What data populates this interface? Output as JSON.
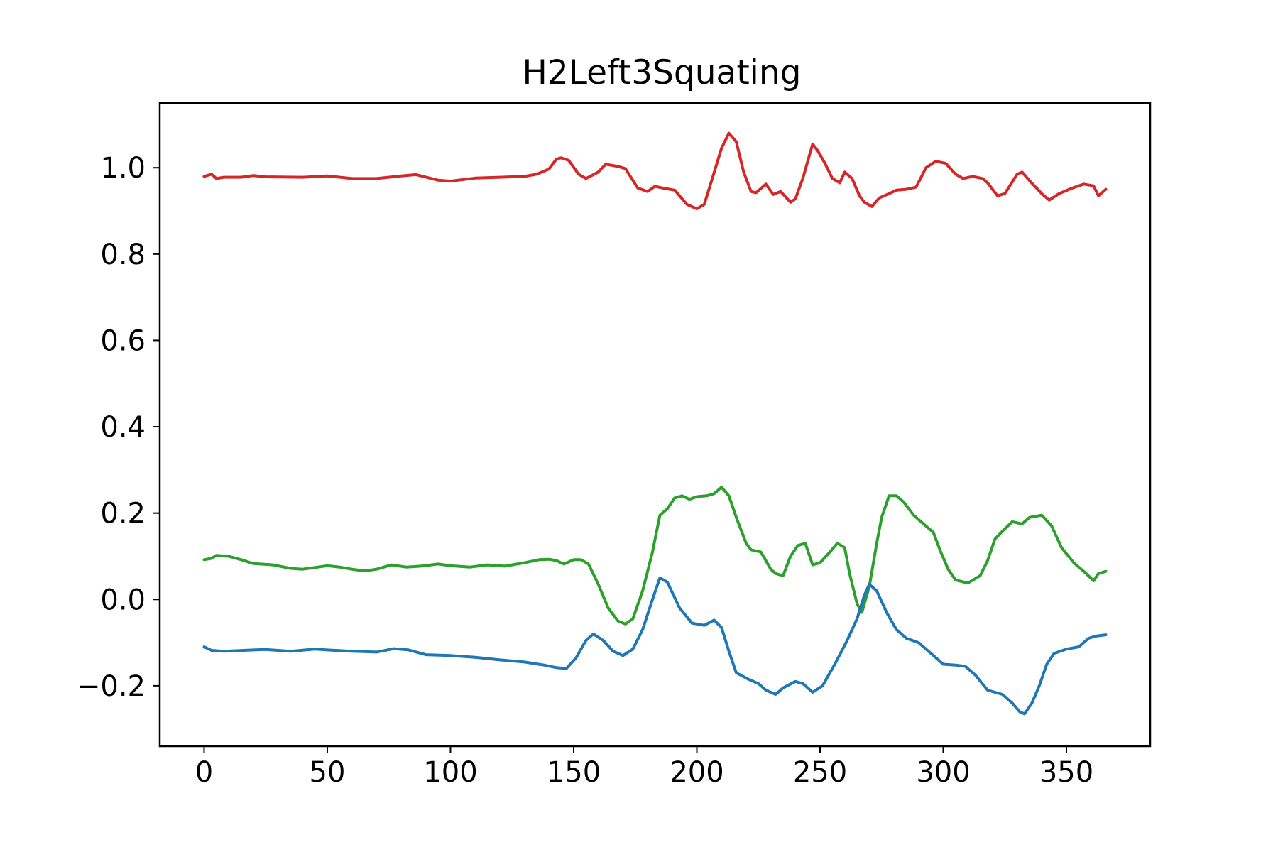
{
  "chart_data": {
    "type": "line",
    "title": "H2Left3Squating",
    "xlabel": "",
    "ylabel": "",
    "xlim": [
      -18,
      384
    ],
    "ylim": [
      -0.34,
      1.15
    ],
    "x_ticks": [
      0,
      50,
      100,
      150,
      200,
      250,
      300,
      350
    ],
    "x_tick_labels": [
      "0",
      "50",
      "100",
      "150",
      "200",
      "250",
      "300",
      "350"
    ],
    "y_ticks": [
      -0.2,
      0.0,
      0.2,
      0.4,
      0.6,
      0.8,
      1.0
    ],
    "y_tick_labels": [
      "−0.2",
      "0.0",
      "0.2",
      "0.4",
      "0.6",
      "0.8",
      "1.0"
    ],
    "grid": false,
    "legend": "none",
    "series": [
      {
        "color": "#d62728",
        "points": [
          [
            0,
            0.98
          ],
          [
            3,
            0.985
          ],
          [
            5,
            0.975
          ],
          [
            8,
            0.978
          ],
          [
            15,
            0.978
          ],
          [
            20,
            0.982
          ],
          [
            25,
            0.979
          ],
          [
            40,
            0.978
          ],
          [
            50,
            0.981
          ],
          [
            60,
            0.975
          ],
          [
            70,
            0.975
          ],
          [
            80,
            0.981
          ],
          [
            86,
            0.984
          ],
          [
            95,
            0.971
          ],
          [
            100,
            0.969
          ],
          [
            110,
            0.976
          ],
          [
            120,
            0.978
          ],
          [
            130,
            0.98
          ],
          [
            135,
            0.985
          ],
          [
            140,
            0.997
          ],
          [
            143,
            1.02
          ],
          [
            145,
            1.023
          ],
          [
            148,
            1.017
          ],
          [
            152,
            0.985
          ],
          [
            155,
            0.975
          ],
          [
            160,
            0.99
          ],
          [
            163,
            1.008
          ],
          [
            168,
            1.003
          ],
          [
            171,
            0.998
          ],
          [
            176,
            0.953
          ],
          [
            180,
            0.945
          ],
          [
            183,
            0.957
          ],
          [
            187,
            0.952
          ],
          [
            191,
            0.948
          ],
          [
            196,
            0.915
          ],
          [
            200,
            0.905
          ],
          [
            203,
            0.915
          ],
          [
            206,
            0.97
          ],
          [
            210,
            1.045
          ],
          [
            213,
            1.08
          ],
          [
            216,
            1.06
          ],
          [
            219,
            0.99
          ],
          [
            222,
            0.945
          ],
          [
            224,
            0.942
          ],
          [
            228,
            0.962
          ],
          [
            231,
            0.938
          ],
          [
            234,
            0.945
          ],
          [
            238,
            0.92
          ],
          [
            240,
            0.928
          ],
          [
            243,
            0.975
          ],
          [
            247,
            1.055
          ],
          [
            249,
            1.04
          ],
          [
            252,
            1.01
          ],
          [
            255,
            0.975
          ],
          [
            258,
            0.965
          ],
          [
            260,
            0.99
          ],
          [
            263,
            0.975
          ],
          [
            266,
            0.935
          ],
          [
            268,
            0.92
          ],
          [
            271,
            0.91
          ],
          [
            274,
            0.93
          ],
          [
            278,
            0.94
          ],
          [
            281,
            0.948
          ],
          [
            285,
            0.95
          ],
          [
            289,
            0.955
          ],
          [
            293,
            1.0
          ],
          [
            297,
            1.015
          ],
          [
            301,
            1.01
          ],
          [
            305,
            0.985
          ],
          [
            308,
            0.975
          ],
          [
            312,
            0.98
          ],
          [
            316,
            0.975
          ],
          [
            318,
            0.965
          ],
          [
            322,
            0.935
          ],
          [
            325,
            0.94
          ],
          [
            330,
            0.985
          ],
          [
            332,
            0.99
          ],
          [
            335,
            0.97
          ],
          [
            340,
            0.94
          ],
          [
            343,
            0.925
          ],
          [
            347,
            0.94
          ],
          [
            352,
            0.952
          ],
          [
            357,
            0.962
          ],
          [
            361,
            0.958
          ],
          [
            363,
            0.935
          ],
          [
            366,
            0.95
          ]
        ]
      },
      {
        "color": "#2ca02c",
        "points": [
          [
            0,
            0.092
          ],
          [
            3,
            0.095
          ],
          [
            5,
            0.102
          ],
          [
            10,
            0.1
          ],
          [
            15,
            0.092
          ],
          [
            20,
            0.083
          ],
          [
            28,
            0.08
          ],
          [
            35,
            0.072
          ],
          [
            40,
            0.07
          ],
          [
            45,
            0.074
          ],
          [
            50,
            0.078
          ],
          [
            55,
            0.075
          ],
          [
            60,
            0.07
          ],
          [
            65,
            0.066
          ],
          [
            70,
            0.07
          ],
          [
            76,
            0.08
          ],
          [
            82,
            0.075
          ],
          [
            88,
            0.077
          ],
          [
            95,
            0.082
          ],
          [
            100,
            0.078
          ],
          [
            108,
            0.075
          ],
          [
            115,
            0.08
          ],
          [
            122,
            0.077
          ],
          [
            130,
            0.085
          ],
          [
            136,
            0.092
          ],
          [
            140,
            0.093
          ],
          [
            143,
            0.09
          ],
          [
            146,
            0.082
          ],
          [
            150,
            0.092
          ],
          [
            153,
            0.092
          ],
          [
            156,
            0.082
          ],
          [
            160,
            0.035
          ],
          [
            164,
            -0.02
          ],
          [
            168,
            -0.05
          ],
          [
            171,
            -0.057
          ],
          [
            174,
            -0.045
          ],
          [
            178,
            0.02
          ],
          [
            182,
            0.11
          ],
          [
            185,
            0.195
          ],
          [
            188,
            0.21
          ],
          [
            191,
            0.235
          ],
          [
            194,
            0.24
          ],
          [
            197,
            0.232
          ],
          [
            200,
            0.238
          ],
          [
            204,
            0.24
          ],
          [
            207,
            0.245
          ],
          [
            210,
            0.26
          ],
          [
            213,
            0.24
          ],
          [
            216,
            0.19
          ],
          [
            220,
            0.13
          ],
          [
            222,
            0.115
          ],
          [
            226,
            0.11
          ],
          [
            230,
            0.07
          ],
          [
            232,
            0.06
          ],
          [
            235,
            0.055
          ],
          [
            238,
            0.1
          ],
          [
            241,
            0.125
          ],
          [
            244,
            0.13
          ],
          [
            247,
            0.08
          ],
          [
            250,
            0.085
          ],
          [
            254,
            0.11
          ],
          [
            257,
            0.13
          ],
          [
            260,
            0.12
          ],
          [
            262,
            0.06
          ],
          [
            265,
            -0.01
          ],
          [
            267,
            -0.03
          ],
          [
            270,
            0.03
          ],
          [
            273,
            0.13
          ],
          [
            275,
            0.19
          ],
          [
            278,
            0.24
          ],
          [
            281,
            0.24
          ],
          [
            284,
            0.225
          ],
          [
            288,
            0.195
          ],
          [
            292,
            0.175
          ],
          [
            296,
            0.155
          ],
          [
            299,
            0.11
          ],
          [
            302,
            0.07
          ],
          [
            305,
            0.045
          ],
          [
            310,
            0.038
          ],
          [
            315,
            0.055
          ],
          [
            318,
            0.09
          ],
          [
            321,
            0.14
          ],
          [
            324,
            0.158
          ],
          [
            328,
            0.18
          ],
          [
            332,
            0.175
          ],
          [
            335,
            0.19
          ],
          [
            340,
            0.195
          ],
          [
            344,
            0.17
          ],
          [
            348,
            0.12
          ],
          [
            353,
            0.085
          ],
          [
            358,
            0.06
          ],
          [
            361,
            0.043
          ],
          [
            363,
            0.06
          ],
          [
            366,
            0.065
          ]
        ]
      },
      {
        "color": "#1f77b4",
        "points": [
          [
            0,
            -0.11
          ],
          [
            3,
            -0.118
          ],
          [
            8,
            -0.12
          ],
          [
            20,
            -0.117
          ],
          [
            25,
            -0.116
          ],
          [
            35,
            -0.12
          ],
          [
            45,
            -0.115
          ],
          [
            50,
            -0.117
          ],
          [
            60,
            -0.12
          ],
          [
            70,
            -0.122
          ],
          [
            77,
            -0.114
          ],
          [
            83,
            -0.117
          ],
          [
            90,
            -0.128
          ],
          [
            100,
            -0.13
          ],
          [
            110,
            -0.134
          ],
          [
            120,
            -0.14
          ],
          [
            130,
            -0.145
          ],
          [
            138,
            -0.152
          ],
          [
            143,
            -0.158
          ],
          [
            147,
            -0.16
          ],
          [
            151,
            -0.135
          ],
          [
            155,
            -0.095
          ],
          [
            158,
            -0.08
          ],
          [
            162,
            -0.095
          ],
          [
            166,
            -0.12
          ],
          [
            170,
            -0.13
          ],
          [
            174,
            -0.115
          ],
          [
            178,
            -0.07
          ],
          [
            182,
            0.0
          ],
          [
            185,
            0.05
          ],
          [
            188,
            0.04
          ],
          [
            193,
            -0.02
          ],
          [
            198,
            -0.055
          ],
          [
            203,
            -0.06
          ],
          [
            207,
            -0.048
          ],
          [
            210,
            -0.065
          ],
          [
            213,
            -0.12
          ],
          [
            216,
            -0.17
          ],
          [
            221,
            -0.185
          ],
          [
            225,
            -0.195
          ],
          [
            228,
            -0.21
          ],
          [
            232,
            -0.22
          ],
          [
            235,
            -0.205
          ],
          [
            240,
            -0.19
          ],
          [
            243,
            -0.195
          ],
          [
            247,
            -0.215
          ],
          [
            251,
            -0.2
          ],
          [
            256,
            -0.15
          ],
          [
            261,
            -0.095
          ],
          [
            265,
            -0.045
          ],
          [
            268,
            0.01
          ],
          [
            270,
            0.035
          ],
          [
            273,
            0.02
          ],
          [
            277,
            -0.03
          ],
          [
            281,
            -0.07
          ],
          [
            285,
            -0.09
          ],
          [
            290,
            -0.1
          ],
          [
            295,
            -0.125
          ],
          [
            300,
            -0.15
          ],
          [
            305,
            -0.152
          ],
          [
            309,
            -0.155
          ],
          [
            313,
            -0.175
          ],
          [
            318,
            -0.21
          ],
          [
            321,
            -0.215
          ],
          [
            324,
            -0.22
          ],
          [
            328,
            -0.24
          ],
          [
            331,
            -0.26
          ],
          [
            333,
            -0.265
          ],
          [
            336,
            -0.24
          ],
          [
            339,
            -0.2
          ],
          [
            342,
            -0.15
          ],
          [
            345,
            -0.125
          ],
          [
            350,
            -0.115
          ],
          [
            355,
            -0.11
          ],
          [
            359,
            -0.09
          ],
          [
            362,
            -0.085
          ],
          [
            366,
            -0.082
          ]
        ]
      }
    ]
  }
}
